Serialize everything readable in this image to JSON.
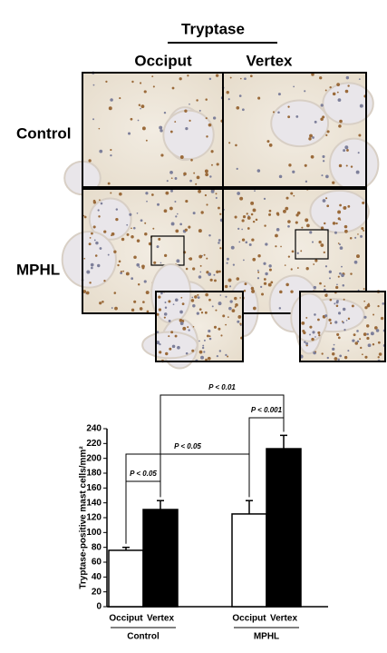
{
  "figure": {
    "group_label": "Tryptase",
    "columns": [
      "Occiput",
      "Vertex"
    ],
    "rows": [
      "Control",
      "MPHL"
    ]
  },
  "chart_data": {
    "type": "bar",
    "y_label": "Tryptase-positive mast cells/mm²",
    "categories": [
      "Control",
      "MPHL"
    ],
    "series": [
      {
        "name": "Occiput",
        "color": "#ffffff",
        "values": [
          76,
          125
        ],
        "errors": [
          4,
          18
        ]
      },
      {
        "name": "Vertex",
        "color": "#000000",
        "values": [
          131,
          213
        ],
        "errors": [
          12,
          18
        ]
      }
    ],
    "annotations": [
      "P < 0.05",
      "P < 0.001",
      "P < 0.05",
      "P < 0.01"
    ],
    "ylim": [
      0,
      240
    ],
    "yticks": [
      0,
      20,
      40,
      60,
      80,
      100,
      120,
      140,
      160,
      180,
      200,
      220,
      240
    ]
  }
}
